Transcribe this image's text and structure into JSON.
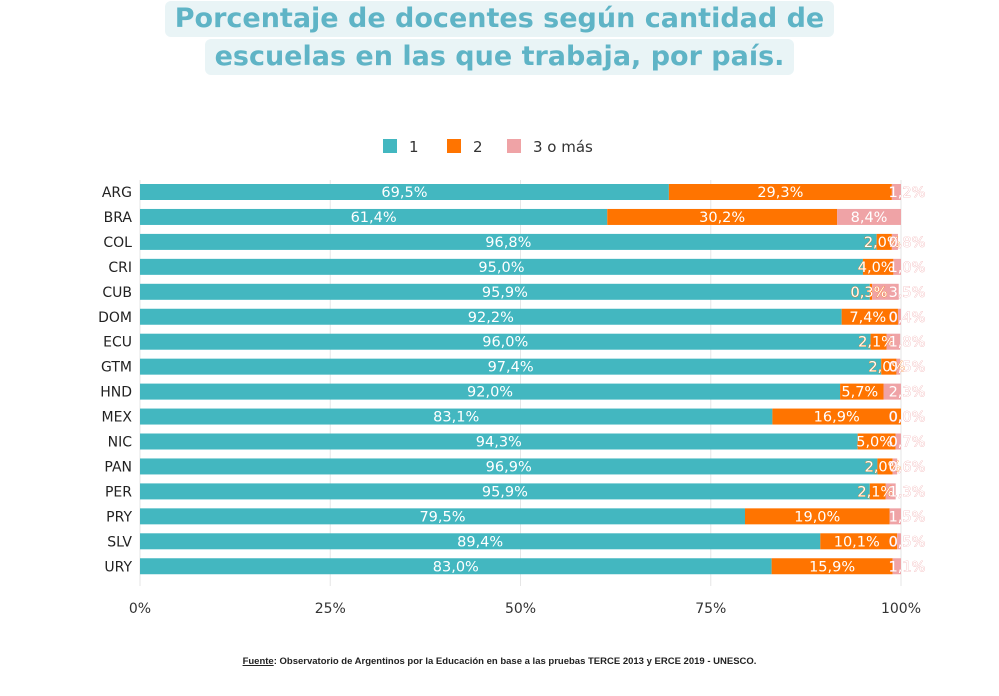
{
  "title_lines": [
    "Porcentaje de docentes según cantidad de",
    "escuelas en las que trabaja, por país."
  ],
  "source": {
    "label": "Fuente",
    "text": ": Observatorio de Argentinos por la Educación en base a las pruebas TERCE 2013 y ERCE 2019 - UNESCO."
  },
  "chart_data": {
    "type": "bar",
    "orientation": "horizontal",
    "stacked": true,
    "title": "Porcentaje de docentes según cantidad de escuelas en las que trabaja, por país.",
    "categories": [
      "ARG",
      "BRA",
      "COL",
      "CRI",
      "CUB",
      "DOM",
      "ECU",
      "GTM",
      "HND",
      "MEX",
      "NIC",
      "PAN",
      "PER",
      "PRY",
      "SLV",
      "URY"
    ],
    "series": [
      {
        "name": "1",
        "color": "#43b7c0",
        "values": [
          69.5,
          61.4,
          96.8,
          95.0,
          95.9,
          92.2,
          96.0,
          97.4,
          92.0,
          83.1,
          94.3,
          96.9,
          95.9,
          79.5,
          89.4,
          83.0
        ],
        "labels": [
          "69,5%",
          "61,4%",
          "96,8%",
          "95,0%",
          "95,9%",
          "92,2%",
          "96,0%",
          "97,4%",
          "92,0%",
          "83,1%",
          "94,3%",
          "96,9%",
          "95,9%",
          "79,5%",
          "89,4%",
          "83,0%"
        ]
      },
      {
        "name": "2",
        "color": "#ff7400",
        "values": [
          29.3,
          30.2,
          2.0,
          4.0,
          0.3,
          7.4,
          2.1,
          2.0,
          5.7,
          16.9,
          5.0,
          2.0,
          2.1,
          19.0,
          10.1,
          15.9
        ],
        "labels": [
          "29,3%",
          "30,2%",
          "2,0%",
          "4,0%",
          "0,3%",
          "7,4%",
          "2,1%",
          "2,0%",
          "5,7%",
          "16,9%",
          "5,0%",
          "2,0%",
          "2,1%",
          "19,0%",
          "10,1%",
          "15,9%"
        ]
      },
      {
        "name": "3 o más",
        "color": "#efa3a6",
        "values": [
          1.2,
          8.4,
          0.8,
          1.0,
          3.5,
          0.4,
          1.8,
          0.5,
          2.3,
          0.0,
          0.7,
          0.6,
          1.3,
          1.5,
          0.5,
          1.1
        ],
        "labels": [
          "1,2%",
          "8,4%",
          "0,8%",
          "1,0%",
          "3,5%",
          "0,4%",
          "1,8%",
          "0,5%",
          "2,3%",
          "0,0%",
          "0,7%",
          "0,6%",
          "1,3%",
          "1,5%",
          "0,5%",
          "1,1%"
        ]
      }
    ],
    "xlim": [
      0,
      100
    ],
    "xticks": [
      "0%",
      "25%",
      "50%",
      "75%",
      "100%"
    ],
    "grid": true,
    "legend": "top-center"
  }
}
